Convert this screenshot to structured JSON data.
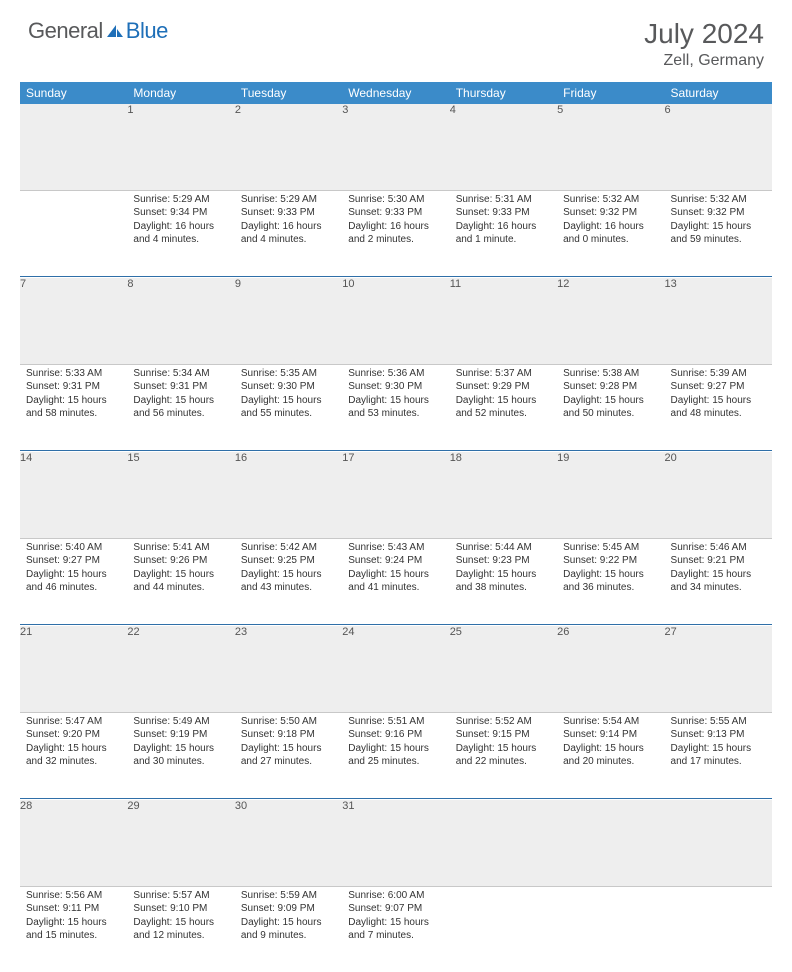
{
  "brand": {
    "name1": "General",
    "name2": "Blue"
  },
  "title": "July 2024",
  "location": "Zell, Germany",
  "colors": {
    "header_bg": "#3b8bc9",
    "header_text": "#ffffff",
    "daynum_bg": "#eeeeee",
    "row_sep": "#2f6fa8",
    "text": "#333333",
    "brand_gray": "#58595b",
    "brand_blue": "#1e6fb8"
  },
  "weekdays": [
    "Sunday",
    "Monday",
    "Tuesday",
    "Wednesday",
    "Thursday",
    "Friday",
    "Saturday"
  ],
  "weeks": [
    [
      null,
      {
        "n": "1",
        "sr": "5:29 AM",
        "ss": "9:34 PM",
        "dl": "16 hours and 4 minutes."
      },
      {
        "n": "2",
        "sr": "5:29 AM",
        "ss": "9:33 PM",
        "dl": "16 hours and 4 minutes."
      },
      {
        "n": "3",
        "sr": "5:30 AM",
        "ss": "9:33 PM",
        "dl": "16 hours and 2 minutes."
      },
      {
        "n": "4",
        "sr": "5:31 AM",
        "ss": "9:33 PM",
        "dl": "16 hours and 1 minute."
      },
      {
        "n": "5",
        "sr": "5:32 AM",
        "ss": "9:32 PM",
        "dl": "16 hours and 0 minutes."
      },
      {
        "n": "6",
        "sr": "5:32 AM",
        "ss": "9:32 PM",
        "dl": "15 hours and 59 minutes."
      }
    ],
    [
      {
        "n": "7",
        "sr": "5:33 AM",
        "ss": "9:31 PM",
        "dl": "15 hours and 58 minutes."
      },
      {
        "n": "8",
        "sr": "5:34 AM",
        "ss": "9:31 PM",
        "dl": "15 hours and 56 minutes."
      },
      {
        "n": "9",
        "sr": "5:35 AM",
        "ss": "9:30 PM",
        "dl": "15 hours and 55 minutes."
      },
      {
        "n": "10",
        "sr": "5:36 AM",
        "ss": "9:30 PM",
        "dl": "15 hours and 53 minutes."
      },
      {
        "n": "11",
        "sr": "5:37 AM",
        "ss": "9:29 PM",
        "dl": "15 hours and 52 minutes."
      },
      {
        "n": "12",
        "sr": "5:38 AM",
        "ss": "9:28 PM",
        "dl": "15 hours and 50 minutes."
      },
      {
        "n": "13",
        "sr": "5:39 AM",
        "ss": "9:27 PM",
        "dl": "15 hours and 48 minutes."
      }
    ],
    [
      {
        "n": "14",
        "sr": "5:40 AM",
        "ss": "9:27 PM",
        "dl": "15 hours and 46 minutes."
      },
      {
        "n": "15",
        "sr": "5:41 AM",
        "ss": "9:26 PM",
        "dl": "15 hours and 44 minutes."
      },
      {
        "n": "16",
        "sr": "5:42 AM",
        "ss": "9:25 PM",
        "dl": "15 hours and 43 minutes."
      },
      {
        "n": "17",
        "sr": "5:43 AM",
        "ss": "9:24 PM",
        "dl": "15 hours and 41 minutes."
      },
      {
        "n": "18",
        "sr": "5:44 AM",
        "ss": "9:23 PM",
        "dl": "15 hours and 38 minutes."
      },
      {
        "n": "19",
        "sr": "5:45 AM",
        "ss": "9:22 PM",
        "dl": "15 hours and 36 minutes."
      },
      {
        "n": "20",
        "sr": "5:46 AM",
        "ss": "9:21 PM",
        "dl": "15 hours and 34 minutes."
      }
    ],
    [
      {
        "n": "21",
        "sr": "5:47 AM",
        "ss": "9:20 PM",
        "dl": "15 hours and 32 minutes."
      },
      {
        "n": "22",
        "sr": "5:49 AM",
        "ss": "9:19 PM",
        "dl": "15 hours and 30 minutes."
      },
      {
        "n": "23",
        "sr": "5:50 AM",
        "ss": "9:18 PM",
        "dl": "15 hours and 27 minutes."
      },
      {
        "n": "24",
        "sr": "5:51 AM",
        "ss": "9:16 PM",
        "dl": "15 hours and 25 minutes."
      },
      {
        "n": "25",
        "sr": "5:52 AM",
        "ss": "9:15 PM",
        "dl": "15 hours and 22 minutes."
      },
      {
        "n": "26",
        "sr": "5:54 AM",
        "ss": "9:14 PM",
        "dl": "15 hours and 20 minutes."
      },
      {
        "n": "27",
        "sr": "5:55 AM",
        "ss": "9:13 PM",
        "dl": "15 hours and 17 minutes."
      }
    ],
    [
      {
        "n": "28",
        "sr": "5:56 AM",
        "ss": "9:11 PM",
        "dl": "15 hours and 15 minutes."
      },
      {
        "n": "29",
        "sr": "5:57 AM",
        "ss": "9:10 PM",
        "dl": "15 hours and 12 minutes."
      },
      {
        "n": "30",
        "sr": "5:59 AM",
        "ss": "9:09 PM",
        "dl": "15 hours and 9 minutes."
      },
      {
        "n": "31",
        "sr": "6:00 AM",
        "ss": "9:07 PM",
        "dl": "15 hours and 7 minutes."
      },
      null,
      null,
      null
    ]
  ],
  "labels": {
    "sunrise": "Sunrise:",
    "sunset": "Sunset:",
    "daylight": "Daylight:"
  }
}
